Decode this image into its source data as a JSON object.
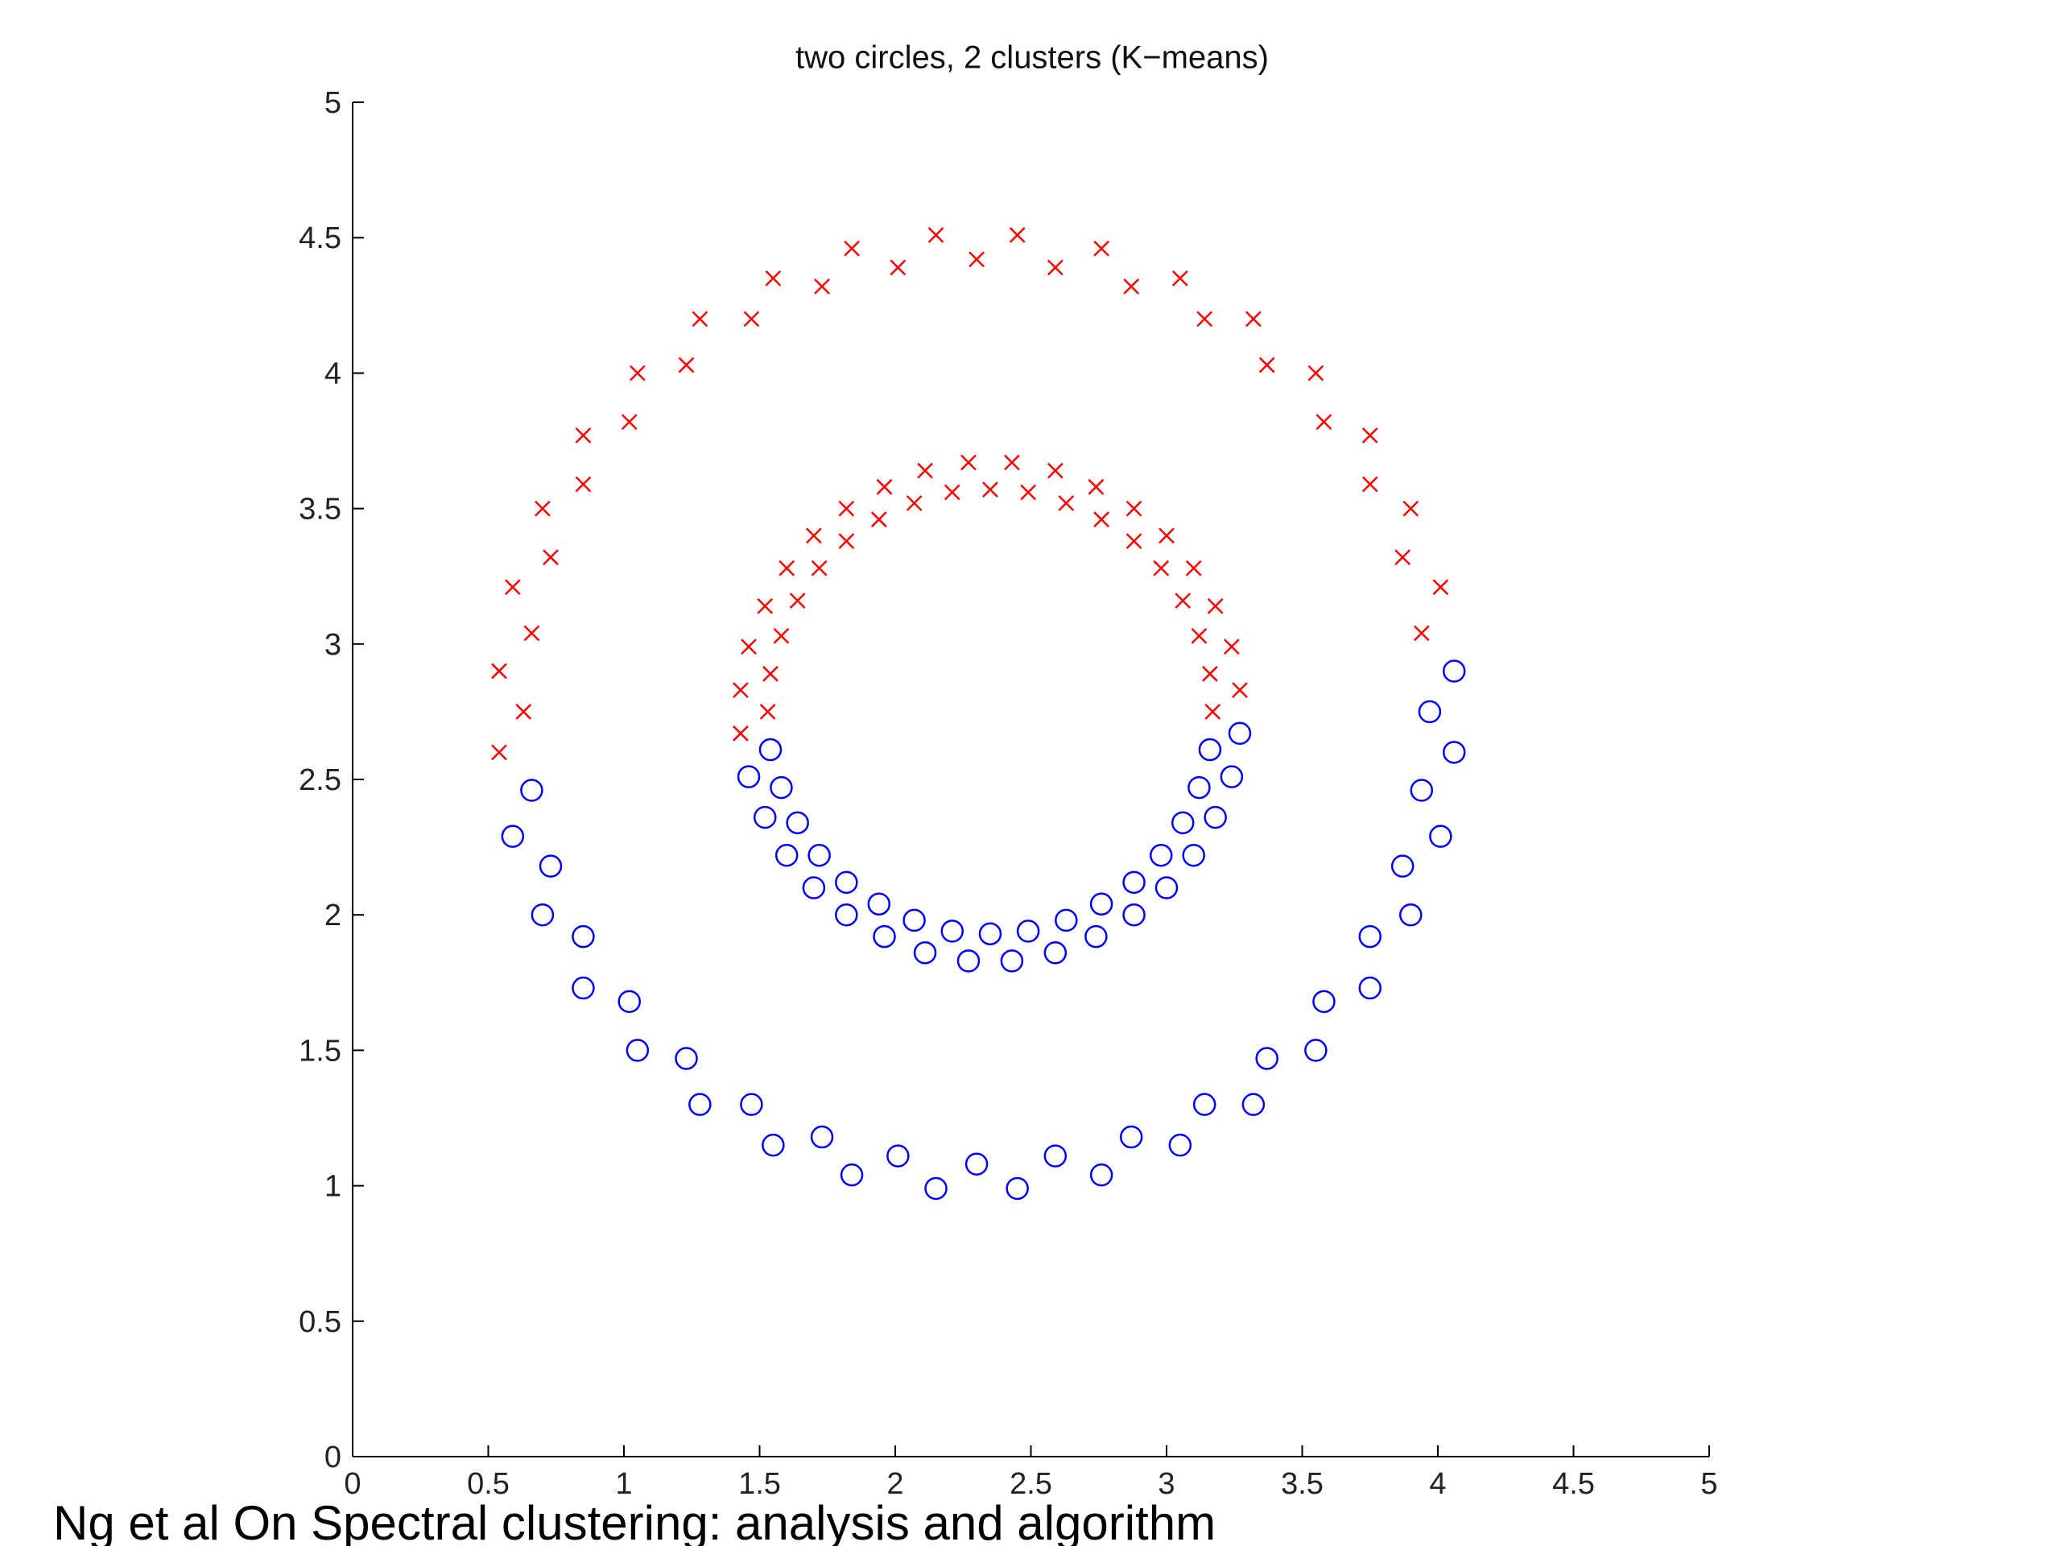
{
  "chart_data": {
    "type": "scatter",
    "title": "two circles, 2 clusters (K−means)",
    "caption": "Ng et al On Spectral clustering: analysis and algorithm",
    "xlim": [
      0,
      5
    ],
    "ylim": [
      0,
      5
    ],
    "xticks": [
      0,
      0.5,
      1,
      1.5,
      2,
      2.5,
      3,
      3.5,
      4,
      4.5,
      5
    ],
    "yticks": [
      0,
      0.5,
      1,
      1.5,
      2,
      2.5,
      3,
      3.5,
      4,
      4.5,
      5
    ],
    "grid": false,
    "series": [
      {
        "color": "#ff0000",
        "marker": "x",
        "x": [
          3.94,
          4.01,
          3.87,
          3.9,
          3.75,
          3.75,
          3.58,
          3.55,
          3.37,
          3.32,
          3.14,
          3.05,
          2.87,
          2.76,
          2.59,
          2.45,
          2.3,
          2.15,
          2.01,
          1.84,
          1.73,
          1.55,
          1.47,
          1.28,
          1.23,
          1.05,
          1.02,
          0.85,
          0.85,
          0.7,
          0.73,
          0.59,
          0.66,
          0.54,
          0.63,
          0.54,
          3.17,
          3.27,
          3.16,
          3.24,
          3.12,
          3.18,
          3.06,
          3.1,
          2.98,
          3.0,
          2.88,
          2.88,
          2.76,
          2.74,
          2.63,
          2.59,
          2.49,
          2.43,
          2.35,
          2.27,
          2.21,
          2.11,
          2.07,
          1.96,
          1.94,
          1.82,
          1.82,
          1.7,
          1.72,
          1.6,
          1.64,
          1.52,
          1.58,
          1.46,
          1.54,
          1.43,
          1.53,
          1.43
        ],
        "y": [
          3.04,
          3.21,
          3.32,
          3.5,
          3.59,
          3.77,
          3.82,
          4.0,
          4.03,
          4.2,
          4.2,
          4.35,
          4.32,
          4.46,
          4.39,
          4.51,
          4.42,
          4.51,
          4.39,
          4.46,
          4.32,
          4.35,
          4.2,
          4.2,
          4.03,
          4.0,
          3.82,
          3.77,
          3.59,
          3.5,
          3.32,
          3.21,
          3.04,
          2.9,
          2.75,
          2.6,
          2.75,
          2.83,
          2.89,
          2.99,
          3.03,
          3.14,
          3.16,
          3.28,
          3.28,
          3.4,
          3.38,
          3.5,
          3.46,
          3.58,
          3.52,
          3.64,
          3.56,
          3.67,
          3.57,
          3.67,
          3.56,
          3.64,
          3.52,
          3.58,
          3.46,
          3.5,
          3.38,
          3.4,
          3.28,
          3.28,
          3.16,
          3.14,
          3.03,
          2.99,
          2.89,
          2.83,
          2.75,
          2.67
        ]
      },
      {
        "color": "#0000ff",
        "marker": "o",
        "x": [
          0.66,
          0.59,
          0.73,
          0.7,
          0.85,
          0.85,
          1.02,
          1.05,
          1.23,
          1.28,
          1.47,
          1.55,
          1.73,
          1.84,
          2.01,
          2.15,
          2.3,
          2.45,
          2.59,
          2.76,
          2.87,
          3.05,
          3.14,
          3.32,
          3.37,
          3.55,
          3.58,
          3.75,
          3.75,
          3.9,
          3.87,
          4.01,
          3.94,
          4.06,
          3.97,
          4.06,
          1.54,
          1.46,
          1.58,
          1.52,
          1.64,
          1.6,
          1.72,
          1.7,
          1.82,
          1.82,
          1.94,
          1.96,
          2.07,
          2.11,
          2.21,
          2.27,
          2.35,
          2.43,
          2.49,
          2.59,
          2.63,
          2.74,
          2.76,
          2.88,
          2.88,
          3.0,
          2.98,
          3.1,
          3.06,
          3.18,
          3.12,
          3.24,
          3.16,
          3.27
        ],
        "y": [
          2.46,
          2.29,
          2.18,
          2.0,
          1.92,
          1.73,
          1.68,
          1.5,
          1.47,
          1.3,
          1.3,
          1.15,
          1.18,
          1.04,
          1.11,
          0.99,
          1.08,
          0.99,
          1.11,
          1.04,
          1.18,
          1.15,
          1.3,
          1.3,
          1.47,
          1.5,
          1.68,
          1.73,
          1.92,
          2.0,
          2.18,
          2.29,
          2.46,
          2.6,
          2.75,
          2.9,
          2.61,
          2.51,
          2.47,
          2.36,
          2.34,
          2.22,
          2.22,
          2.1,
          2.12,
          2.0,
          2.04,
          1.92,
          1.98,
          1.86,
          1.94,
          1.83,
          1.93,
          1.83,
          1.94,
          1.86,
          1.98,
          1.92,
          2.04,
          2.0,
          2.12,
          2.1,
          2.22,
          2.22,
          2.34,
          2.36,
          2.47,
          2.51,
          2.61,
          2.67
        ]
      }
    ]
  }
}
